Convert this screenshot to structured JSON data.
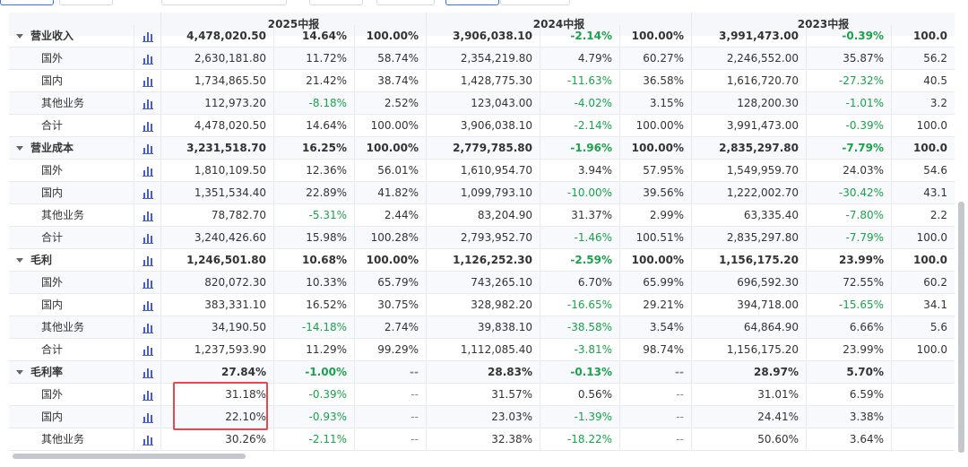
{
  "columns": [
    "2025中报",
    "2024中报",
    "2023中报"
  ],
  "rows": [
    {
      "name": "营业收入",
      "type": "group",
      "v": [
        "4,478,020.50",
        "14.64%",
        "100.00%",
        "3,906,038.10",
        "-2.14%",
        "100.00%",
        "3,991,473.00",
        "-0.39%",
        "100.0"
      ]
    },
    {
      "name": "国外",
      "type": "child",
      "v": [
        "2,630,181.80",
        "11.72%",
        "58.74%",
        "2,354,219.80",
        "4.79%",
        "60.27%",
        "2,246,552.00",
        "35.87%",
        "56.2"
      ]
    },
    {
      "name": "国内",
      "type": "child",
      "v": [
        "1,734,865.50",
        "21.42%",
        "38.74%",
        "1,428,775.30",
        "-11.63%",
        "36.58%",
        "1,616,720.70",
        "-27.32%",
        "40.5"
      ]
    },
    {
      "name": "其他业务",
      "type": "child",
      "v": [
        "112,973.20",
        "-8.18%",
        "2.52%",
        "123,043.00",
        "-4.02%",
        "3.15%",
        "128,200.30",
        "-1.01%",
        "3.2"
      ]
    },
    {
      "name": "合计",
      "type": "child",
      "v": [
        "4,478,020.50",
        "14.64%",
        "100.00%",
        "3,906,038.10",
        "-2.14%",
        "100.00%",
        "3,991,473.00",
        "-0.39%",
        "100.0"
      ]
    },
    {
      "name": "营业成本",
      "type": "group",
      "v": [
        "3,231,518.70",
        "16.25%",
        "100.00%",
        "2,779,785.80",
        "-1.96%",
        "100.00%",
        "2,835,297.80",
        "-7.79%",
        "100.0"
      ]
    },
    {
      "name": "国外",
      "type": "child",
      "v": [
        "1,810,109.50",
        "12.36%",
        "56.01%",
        "1,610,954.70",
        "3.94%",
        "57.95%",
        "1,549,959.70",
        "24.03%",
        "54.6"
      ]
    },
    {
      "name": "国内",
      "type": "child",
      "v": [
        "1,351,534.40",
        "22.89%",
        "41.82%",
        "1,099,793.10",
        "-10.00%",
        "39.56%",
        "1,222,002.70",
        "-30.42%",
        "43.1"
      ]
    },
    {
      "name": "其他业务",
      "type": "child",
      "v": [
        "78,782.70",
        "-5.31%",
        "2.44%",
        "83,204.90",
        "31.37%",
        "2.99%",
        "63,335.40",
        "-7.80%",
        "2.2"
      ]
    },
    {
      "name": "合计",
      "type": "child",
      "v": [
        "3,240,426.60",
        "15.98%",
        "100.28%",
        "2,793,952.70",
        "-1.46%",
        "100.51%",
        "2,835,297.80",
        "-7.79%",
        "100.0"
      ]
    },
    {
      "name": "毛利",
      "type": "group",
      "v": [
        "1,246,501.80",
        "10.68%",
        "100.00%",
        "1,126,252.30",
        "-2.59%",
        "100.00%",
        "1,156,175.20",
        "23.99%",
        "100.0"
      ]
    },
    {
      "name": "国外",
      "type": "child",
      "v": [
        "820,072.30",
        "10.33%",
        "65.79%",
        "743,265.10",
        "6.70%",
        "65.99%",
        "696,592.30",
        "72.55%",
        "60.2"
      ]
    },
    {
      "name": "国内",
      "type": "child",
      "v": [
        "383,331.10",
        "16.52%",
        "30.75%",
        "328,982.20",
        "-16.65%",
        "29.21%",
        "394,718.00",
        "-15.65%",
        "34.1"
      ]
    },
    {
      "name": "其他业务",
      "type": "child",
      "v": [
        "34,190.50",
        "-14.18%",
        "2.74%",
        "39,838.10",
        "-38.58%",
        "3.54%",
        "64,864.90",
        "6.66%",
        "5.6"
      ]
    },
    {
      "name": "合计",
      "type": "child",
      "v": [
        "1,237,593.90",
        "11.29%",
        "99.29%",
        "1,112,085.40",
        "-3.81%",
        "98.74%",
        "1,156,175.20",
        "23.99%",
        "100.0"
      ]
    },
    {
      "name": "毛利率",
      "type": "group",
      "v": [
        "27.84%",
        "-1.00%",
        "--",
        "28.83%",
        "-0.13%",
        "--",
        "28.97%",
        "5.70%",
        ""
      ]
    },
    {
      "name": "国外",
      "type": "child",
      "v": [
        "31.18%",
        "-0.39%",
        "--",
        "31.57%",
        "0.56%",
        "--",
        "31.01%",
        "6.59%",
        ""
      ]
    },
    {
      "name": "国内",
      "type": "child",
      "v": [
        "22.10%",
        "-0.93%",
        "--",
        "23.03%",
        "-1.39%",
        "--",
        "24.41%",
        "3.38%",
        ""
      ]
    },
    {
      "name": "其他业务",
      "type": "child",
      "v": [
        "30.26%",
        "-2.11%",
        "--",
        "32.38%",
        "-18.22%",
        "--",
        "50.60%",
        "3.64%",
        ""
      ]
    }
  ],
  "colors": {
    "negative": "#1aa34a",
    "highlight": "#e5484d",
    "icon": "#4a5fc1"
  },
  "icons": {
    "row_chart": "bar-chart-icon",
    "expand": "caret-down-icon"
  }
}
